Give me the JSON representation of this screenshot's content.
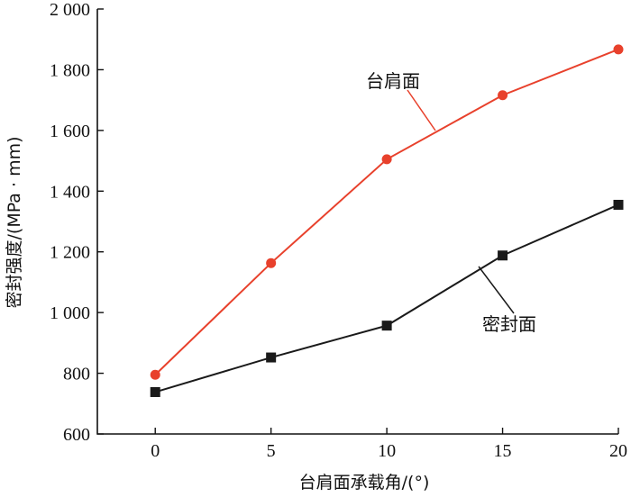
{
  "chart_data": {
    "type": "line",
    "title": "",
    "xlabel": "台肩面承载角/(°)",
    "ylabel": "密封强度/(MPa · mm)",
    "x": [
      0,
      5,
      10,
      15,
      20
    ],
    "x_ticks": [
      "0",
      "5",
      "10",
      "15",
      "20"
    ],
    "xlim": [
      -2.5,
      20
    ],
    "ylim": [
      600,
      2000
    ],
    "y_ticks": [
      "600",
      "800",
      "1 000",
      "1 200",
      "1 400",
      "1 600",
      "1 800",
      "2 000"
    ],
    "grid": false,
    "series": [
      {
        "name": "台肩面",
        "values": [
          795,
          1163,
          1505,
          1716,
          1867
        ],
        "color": "#e8412c",
        "marker": "circle"
      },
      {
        "name": "密封面",
        "values": [
          738,
          852,
          957,
          1188,
          1355
        ],
        "color": "#1a1a1a",
        "marker": "square"
      }
    ]
  }
}
